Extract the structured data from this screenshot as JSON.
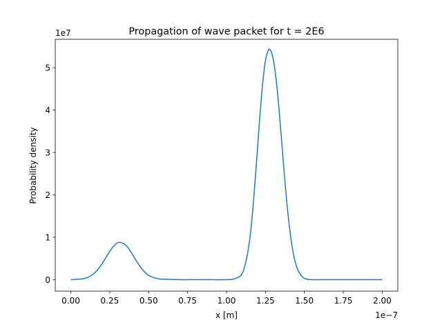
{
  "chart_data": {
    "type": "line",
    "title": "Propagation of wave packet for t = 2E6",
    "xlabel": "x [m]",
    "ylabel": "Probability density",
    "x_offset_label": "1e−7",
    "y_offset_label": "1e7",
    "x_scale": 1e-07,
    "y_scale": 10000000.0,
    "xlim": [
      -0.1,
      2.1
    ],
    "ylim": [
      -0.27,
      5.67
    ],
    "x_ticks": [
      0.0,
      0.25,
      0.5,
      0.75,
      1.0,
      1.25,
      1.5,
      1.75,
      2.0
    ],
    "x_tick_labels": [
      "0.00",
      "0.25",
      "0.50",
      "0.75",
      "1.00",
      "1.25",
      "1.50",
      "1.75",
      "2.00"
    ],
    "y_ticks": [
      0,
      1,
      2,
      3,
      4,
      5
    ],
    "y_tick_labels": [
      "0",
      "1",
      "2",
      "3",
      "4",
      "5"
    ],
    "grid": false,
    "series": [
      {
        "color": "#1f77b4",
        "x": [
          0.0,
          0.05,
          0.1,
          0.15,
          0.18,
          0.2,
          0.22,
          0.24,
          0.26,
          0.28,
          0.3,
          0.32,
          0.34,
          0.36,
          0.38,
          0.4,
          0.42,
          0.44,
          0.46,
          0.48,
          0.5,
          0.55,
          0.6,
          0.7,
          0.8,
          0.9,
          1.0,
          1.05,
          1.1,
          1.13,
          1.15,
          1.17,
          1.19,
          1.21,
          1.23,
          1.25,
          1.27,
          1.28,
          1.29,
          1.3,
          1.31,
          1.32,
          1.33,
          1.35,
          1.37,
          1.39,
          1.41,
          1.43,
          1.45,
          1.47,
          1.5,
          1.55,
          1.6,
          1.7,
          1.8,
          1.9,
          2.0
        ],
        "y": [
          0.0,
          0.01,
          0.04,
          0.15,
          0.27,
          0.37,
          0.49,
          0.61,
          0.72,
          0.81,
          0.87,
          0.88,
          0.85,
          0.79,
          0.69,
          0.57,
          0.45,
          0.34,
          0.24,
          0.16,
          0.1,
          0.03,
          0.01,
          0.0,
          0.0,
          0.0,
          0.0,
          0.02,
          0.14,
          0.52,
          0.98,
          1.7,
          2.64,
          3.65,
          4.55,
          5.17,
          5.42,
          5.42,
          5.35,
          5.2,
          4.98,
          4.68,
          4.32,
          3.46,
          2.54,
          1.72,
          1.07,
          0.6,
          0.31,
          0.15,
          0.03,
          0.0,
          0.0,
          0.0,
          0.0,
          0.0,
          0.0
        ]
      }
    ]
  }
}
